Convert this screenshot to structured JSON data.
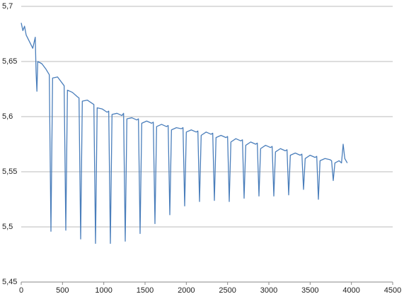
{
  "chart_data": {
    "type": "line",
    "color": "#4a7ebb",
    "grid": true,
    "xlim": [
      0,
      4500
    ],
    "xticks": [
      0,
      500,
      1000,
      1500,
      2000,
      2500,
      3000,
      3500,
      4000,
      4500
    ],
    "ylim": [
      5.45,
      5.7
    ],
    "yticks": [
      {
        "value": 5.45,
        "label": "5,45"
      },
      {
        "value": 5.5,
        "label": "5,5"
      },
      {
        "value": 5.55,
        "label": "5,55"
      },
      {
        "value": 5.6,
        "label": "5,6"
      },
      {
        "value": 5.65,
        "label": "5,65"
      },
      {
        "value": 5.7,
        "label": "5,7"
      }
    ],
    "x": [
      0,
      20,
      40,
      60,
      100,
      140,
      170,
      180,
      190,
      200,
      250,
      300,
      340,
      360,
      380,
      440,
      500,
      520,
      540,
      560,
      620,
      680,
      700,
      720,
      740,
      800,
      860,
      880,
      900,
      920,
      980,
      1040,
      1060,
      1080,
      1100,
      1160,
      1220,
      1240,
      1260,
      1280,
      1340,
      1400,
      1420,
      1440,
      1460,
      1520,
      1580,
      1600,
      1620,
      1640,
      1700,
      1760,
      1780,
      1800,
      1820,
      1880,
      1940,
      1960,
      1980,
      2000,
      2060,
      2120,
      2140,
      2160,
      2180,
      2240,
      2300,
      2320,
      2340,
      2360,
      2420,
      2480,
      2500,
      2520,
      2540,
      2600,
      2660,
      2680,
      2700,
      2720,
      2780,
      2840,
      2860,
      2880,
      2900,
      2960,
      3020,
      3040,
      3060,
      3080,
      3140,
      3200,
      3220,
      3240,
      3260,
      3320,
      3380,
      3400,
      3420,
      3440,
      3500,
      3560,
      3580,
      3600,
      3620,
      3680,
      3740,
      3760,
      3780,
      3800,
      3850,
      3880,
      3900,
      3920,
      3950
    ],
    "values": [
      5.685,
      5.678,
      5.682,
      5.674,
      5.668,
      5.662,
      5.672,
      5.64,
      5.623,
      5.65,
      5.648,
      5.643,
      5.638,
      5.496,
      5.635,
      5.636,
      5.63,
      5.628,
      5.497,
      5.624,
      5.622,
      5.618,
      5.617,
      5.489,
      5.614,
      5.615,
      5.612,
      5.611,
      5.485,
      5.608,
      5.607,
      5.604,
      5.605,
      5.485,
      5.602,
      5.603,
      5.601,
      5.603,
      5.487,
      5.598,
      5.599,
      5.597,
      5.598,
      5.494,
      5.594,
      5.596,
      5.594,
      5.595,
      5.503,
      5.591,
      5.593,
      5.591,
      5.592,
      5.511,
      5.588,
      5.59,
      5.589,
      5.59,
      5.519,
      5.586,
      5.588,
      5.586,
      5.587,
      5.523,
      5.583,
      5.586,
      5.584,
      5.585,
      5.524,
      5.581,
      5.583,
      5.581,
      5.582,
      5.523,
      5.577,
      5.58,
      5.578,
      5.579,
      5.526,
      5.574,
      5.577,
      5.575,
      5.576,
      5.528,
      5.571,
      5.574,
      5.572,
      5.573,
      5.528,
      5.568,
      5.571,
      5.569,
      5.57,
      5.529,
      5.565,
      5.567,
      5.565,
      5.566,
      5.534,
      5.562,
      5.565,
      5.563,
      5.564,
      5.525,
      5.56,
      5.562,
      5.561,
      5.56,
      5.542,
      5.558,
      5.56,
      5.558,
      5.575,
      5.562,
      5.558
    ]
  }
}
